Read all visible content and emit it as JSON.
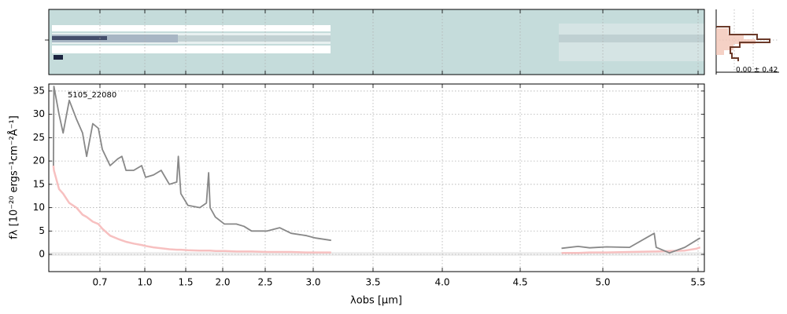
{
  "chart_data": {
    "type": "line",
    "annotation": "5105_22080",
    "xlabel": "λobs [μm]",
    "ylabel": "fλ [10⁻²⁰ ergs⁻¹cm⁻²Å⁻¹]",
    "side_label": "0.00 ± 0.42",
    "x": [
      0.609,
      0.61,
      0.62,
      0.628,
      0.64,
      0.654,
      0.666,
      0.674,
      0.686,
      0.697,
      0.716,
      0.768,
      0.821,
      0.847,
      0.874,
      0.926,
      0.979,
      1.01,
      1.106,
      1.2,
      1.3,
      1.39,
      1.41,
      1.44,
      1.53,
      1.69,
      1.78,
      1.81,
      1.83,
      1.9,
      2.02,
      2.16,
      2.25,
      2.34,
      2.52,
      2.65,
      2.77,
      2.93,
      3.02,
      3.15,
      null,
      4.75,
      4.85,
      4.92,
      5.02,
      5.14,
      5.27,
      5.28,
      5.35,
      5.43,
      5.49,
      5.51
    ],
    "series": [
      {
        "color": "#f7c0c0",
        "values": [
          19,
          18,
          14,
          13,
          11,
          10,
          8.5,
          8,
          7,
          6.5,
          5.5,
          4,
          3.3,
          3,
          2.7,
          2.3,
          2,
          1.8,
          1.5,
          1.3,
          1.1,
          1,
          1,
          1,
          0.9,
          0.8,
          0.8,
          0.8,
          0.8,
          0.7,
          0.7,
          0.6,
          0.6,
          0.6,
          0.5,
          0.5,
          0.5,
          0.4,
          0.4,
          0.4,
          null,
          0.3,
          0.3,
          0.4,
          0.4,
          0.5,
          0.6,
          0.6,
          0.7,
          0.8,
          1.2,
          1.5
        ]
      },
      {
        "color": "#888888",
        "values": [
          19,
          36,
          30,
          26,
          33,
          29,
          26,
          21,
          28,
          27,
          22.5,
          19,
          20.5,
          21,
          18,
          18,
          19,
          16.5,
          17,
          18,
          15,
          15.5,
          21,
          13,
          10.5,
          10,
          11,
          17.5,
          10,
          8,
          6.5,
          6.5,
          6,
          5,
          5,
          5.7,
          4.5,
          4,
          3.5,
          3,
          null,
          1.3,
          1.7,
          1.4,
          1.6,
          1.5,
          4.5,
          1.5,
          0.3,
          1.5,
          3,
          3.5
        ]
      }
    ],
    "xlim": [
      0.6,
      5.53
    ],
    "ylim": [
      -3.7,
      36.5
    ],
    "xticks": [
      0.7,
      {
        "value": 1,
        "label": "1.0"
      },
      1.5,
      {
        "value": 2,
        "label": "2.0"
      },
      2.5,
      {
        "value": 3,
        "label": "3.0"
      },
      3.5,
      {
        "value": 4,
        "label": "4.0"
      },
      4.5,
      {
        "value": 5,
        "label": "5.0"
      },
      5.5
    ],
    "yticks": [
      0,
      5,
      10,
      15,
      20,
      25,
      30,
      35
    ],
    "grid": true
  }
}
